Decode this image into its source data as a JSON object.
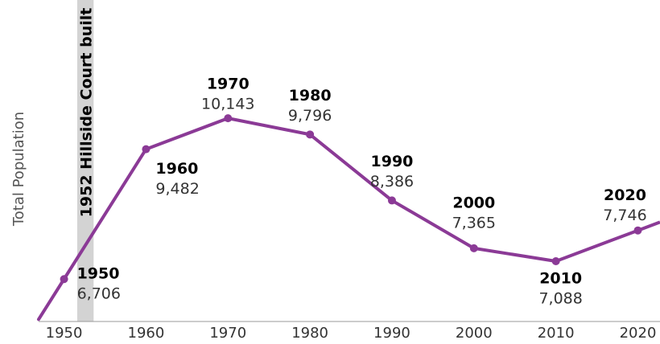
{
  "chart_data": {
    "type": "line",
    "y_label": "Total Population",
    "x": [
      1950,
      1960,
      1970,
      1980,
      1990,
      2000,
      2010,
      2020
    ],
    "series": [
      {
        "name": "Total Population",
        "color": "#8b3a96",
        "values": [
          6706,
          9482,
          10143,
          9796,
          8386,
          7365,
          7088,
          7746
        ],
        "value_labels": [
          "6,706",
          "9,482",
          "10,143",
          "9,796",
          "8,386",
          "7,365",
          "7,088",
          "7,746"
        ]
      }
    ],
    "xlim": [
      1946.9,
      2022.7
    ],
    "xticks": [
      1950,
      1960,
      1970,
      1980,
      1990,
      2000,
      2010,
      2020
    ],
    "ylim": [
      5800,
      12670
    ],
    "annotation": {
      "text": "1952 Hillside Court built",
      "x": [
        1952,
        1954
      ],
      "color": "#d3d3d3"
    }
  }
}
